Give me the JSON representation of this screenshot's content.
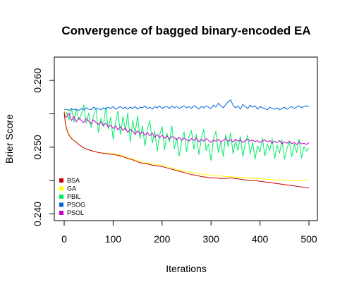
{
  "chart_data": {
    "type": "line",
    "title": "Convergence of bagged binary-encoded EA",
    "xlabel": "Iterations",
    "ylabel": "Brier Score",
    "xlim": [
      0,
      500
    ],
    "ylim": [
      0.239,
      0.2635
    ],
    "x_ticks": [
      0,
      100,
      200,
      300,
      400,
      500
    ],
    "x_tick_labels": [
      "0",
      "100",
      "200",
      "300",
      "400",
      "500"
    ],
    "y_ticks": [
      0.24,
      0.245,
      0.25,
      0.255,
      0.26
    ],
    "y_tick_labels": [
      "0.240",
      "",
      "0.250",
      "",
      "0.260"
    ],
    "grid": false,
    "legend_position": "bottom-left",
    "series": [
      {
        "name": "BSA",
        "color": "#cc0000",
        "x": [
          0,
          2,
          4,
          6,
          8,
          10,
          15,
          20,
          25,
          30,
          40,
          50,
          60,
          70,
          80,
          90,
          100,
          110,
          120,
          130,
          140,
          150,
          160,
          170,
          180,
          190,
          200,
          210,
          220,
          230,
          240,
          250,
          260,
          270,
          280,
          290,
          300,
          310,
          320,
          330,
          340,
          350,
          360,
          370,
          380,
          390,
          400,
          410,
          420,
          430,
          440,
          450,
          460,
          470,
          480,
          490,
          500
        ],
        "values": [
          0.2553,
          0.2538,
          0.253,
          0.2525,
          0.2521,
          0.2518,
          0.2513,
          0.251,
          0.2507,
          0.2504,
          0.2499,
          0.2496,
          0.2494,
          0.2492,
          0.2491,
          0.249,
          0.2489,
          0.2488,
          0.2486,
          0.2483,
          0.2481,
          0.2478,
          0.2476,
          0.2475,
          0.2473,
          0.2472,
          0.2471,
          0.2469,
          0.2467,
          0.2465,
          0.2463,
          0.2461,
          0.2459,
          0.2458,
          0.2456,
          0.2455,
          0.2454,
          0.2454,
          0.2453,
          0.2453,
          0.2454,
          0.2453,
          0.2452,
          0.2451,
          0.245,
          0.245,
          0.2449,
          0.2448,
          0.2447,
          0.2446,
          0.2445,
          0.2444,
          0.2443,
          0.2442,
          0.2441,
          0.244,
          0.2439
        ]
      },
      {
        "name": "GA",
        "color": "#ffff00",
        "x": [
          0,
          2,
          4,
          6,
          8,
          10,
          15,
          20,
          25,
          30,
          40,
          50,
          60,
          70,
          80,
          90,
          100,
          110,
          120,
          130,
          140,
          150,
          160,
          170,
          180,
          190,
          200,
          210,
          220,
          230,
          240,
          250,
          260,
          270,
          280,
          290,
          300,
          310,
          320,
          330,
          340,
          350,
          360,
          370,
          380,
          390,
          400,
          410,
          420,
          430,
          440,
          450,
          460,
          470,
          480,
          490,
          500
        ],
        "values": [
          0.2556,
          0.254,
          0.2531,
          0.2526,
          0.2522,
          0.2519,
          0.2514,
          0.251,
          0.2507,
          0.2504,
          0.2499,
          0.2496,
          0.2494,
          0.2492,
          0.2491,
          0.2491,
          0.249,
          0.2489,
          0.2487,
          0.2484,
          0.2482,
          0.248,
          0.2478,
          0.2476,
          0.2475,
          0.2474,
          0.2473,
          0.2471,
          0.2469,
          0.2467,
          0.2465,
          0.2464,
          0.2462,
          0.2461,
          0.246,
          0.2459,
          0.2458,
          0.2457,
          0.2457,
          0.2456,
          0.2456,
          0.2455,
          0.2455,
          0.2454,
          0.2454,
          0.2453,
          0.2453,
          0.2452,
          0.2452,
          0.2451,
          0.2451,
          0.2451,
          0.245,
          0.245,
          0.245,
          0.245,
          0.245
        ]
      },
      {
        "name": "PBIL",
        "color": "#00ee66",
        "x": [
          0,
          5,
          10,
          15,
          20,
          25,
          30,
          35,
          40,
          45,
          50,
          55,
          60,
          65,
          70,
          75,
          80,
          85,
          90,
          95,
          100,
          105,
          110,
          115,
          120,
          125,
          130,
          135,
          140,
          145,
          150,
          155,
          160,
          165,
          170,
          175,
          180,
          185,
          190,
          195,
          200,
          205,
          210,
          215,
          220,
          225,
          230,
          235,
          240,
          245,
          250,
          255,
          260,
          265,
          270,
          275,
          280,
          285,
          290,
          295,
          300,
          305,
          310,
          315,
          320,
          325,
          330,
          335,
          340,
          345,
          350,
          355,
          360,
          365,
          370,
          375,
          380,
          385,
          390,
          395,
          400,
          405,
          410,
          415,
          420,
          425,
          430,
          435,
          440,
          445,
          450,
          455,
          460,
          465,
          470,
          475,
          480,
          485,
          490,
          495,
          500
        ],
        "values": [
          0.2545,
          0.2552,
          0.2541,
          0.2558,
          0.2538,
          0.2557,
          0.2541,
          0.2549,
          0.2563,
          0.2536,
          0.2551,
          0.253,
          0.2547,
          0.2559,
          0.2522,
          0.2543,
          0.2531,
          0.256,
          0.2527,
          0.2545,
          0.2512,
          0.2538,
          0.2554,
          0.2519,
          0.2546,
          0.2525,
          0.2551,
          0.2508,
          0.254,
          0.2521,
          0.2547,
          0.2513,
          0.2532,
          0.2502,
          0.2527,
          0.254,
          0.2506,
          0.2524,
          0.2494,
          0.2518,
          0.2531,
          0.2496,
          0.2521,
          0.2508,
          0.2532,
          0.2498,
          0.2514,
          0.2487,
          0.2509,
          0.2523,
          0.2493,
          0.2516,
          0.2525,
          0.2497,
          0.2519,
          0.2489,
          0.2511,
          0.2527,
          0.2495,
          0.2505,
          0.248,
          0.2512,
          0.2524,
          0.2492,
          0.2508,
          0.2486,
          0.2519,
          0.2501,
          0.2522,
          0.249,
          0.251,
          0.2495,
          0.2516,
          0.2486,
          0.2506,
          0.2518,
          0.249,
          0.2508,
          0.2482,
          0.2502,
          0.2493,
          0.2514,
          0.2487,
          0.2505,
          0.2495,
          0.2513,
          0.2483,
          0.2503,
          0.2491,
          0.2511,
          0.2482,
          0.2498,
          0.2508,
          0.2486,
          0.2505,
          0.2492,
          0.2512,
          0.2484,
          0.2501,
          0.2494,
          0.2499
        ]
      },
      {
        "name": "PSOG",
        "color": "#0066dd",
        "x": [
          0,
          5,
          10,
          15,
          20,
          25,
          30,
          35,
          40,
          45,
          50,
          55,
          60,
          65,
          70,
          75,
          80,
          85,
          90,
          95,
          100,
          105,
          110,
          115,
          120,
          125,
          130,
          135,
          140,
          145,
          150,
          155,
          160,
          165,
          170,
          175,
          180,
          185,
          190,
          195,
          200,
          205,
          210,
          215,
          220,
          225,
          230,
          235,
          240,
          245,
          250,
          255,
          260,
          265,
          270,
          275,
          280,
          285,
          290,
          295,
          300,
          305,
          310,
          315,
          320,
          325,
          330,
          335,
          340,
          345,
          350,
          355,
          360,
          365,
          370,
          375,
          380,
          385,
          390,
          395,
          400,
          405,
          410,
          415,
          420,
          425,
          430,
          435,
          440,
          445,
          450,
          455,
          460,
          465,
          470,
          475,
          480,
          485,
          490,
          495,
          500
        ],
        "values": [
          0.2556,
          0.2557,
          0.2555,
          0.2558,
          0.2556,
          0.2557,
          0.2555,
          0.2558,
          0.2556,
          0.2559,
          0.2557,
          0.2556,
          0.256,
          0.2557,
          0.2558,
          0.2556,
          0.2559,
          0.2557,
          0.256,
          0.2558,
          0.2561,
          0.2557,
          0.2559,
          0.2561,
          0.2558,
          0.256,
          0.2557,
          0.256,
          0.2558,
          0.2561,
          0.2557,
          0.256,
          0.2559,
          0.2562,
          0.2558,
          0.256,
          0.2557,
          0.2561,
          0.2559,
          0.2562,
          0.2558,
          0.256,
          0.2561,
          0.2558,
          0.2562,
          0.2559,
          0.2561,
          0.2558,
          0.256,
          0.2562,
          0.2559,
          0.2561,
          0.2558,
          0.2562,
          0.256,
          0.2557,
          0.2561,
          0.2559,
          0.2562,
          0.256,
          0.2558,
          0.2563,
          0.256,
          0.2566,
          0.2562,
          0.2559,
          0.2564,
          0.2568,
          0.2571,
          0.2563,
          0.2559,
          0.2562,
          0.2557,
          0.2564,
          0.2561,
          0.2558,
          0.2563,
          0.256,
          0.2562,
          0.2557,
          0.2561,
          0.2559,
          0.2558,
          0.2556,
          0.256,
          0.2558,
          0.2557,
          0.2559,
          0.2556,
          0.2558,
          0.256,
          0.2557,
          0.2559,
          0.2561,
          0.2558,
          0.256,
          0.2562,
          0.2559,
          0.2561,
          0.2562,
          0.2561
        ]
      },
      {
        "name": "PSOL",
        "color": "#cc00cc",
        "x": [
          0,
          5,
          10,
          15,
          20,
          25,
          30,
          35,
          40,
          45,
          50,
          55,
          60,
          65,
          70,
          75,
          80,
          85,
          90,
          95,
          100,
          105,
          110,
          115,
          120,
          125,
          130,
          135,
          140,
          145,
          150,
          155,
          160,
          165,
          170,
          175,
          180,
          185,
          190,
          195,
          200,
          205,
          210,
          215,
          220,
          225,
          230,
          235,
          240,
          245,
          250,
          255,
          260,
          265,
          270,
          275,
          280,
          285,
          290,
          295,
          300,
          305,
          310,
          315,
          320,
          325,
          330,
          335,
          340,
          345,
          350,
          355,
          360,
          365,
          370,
          375,
          380,
          385,
          390,
          395,
          400,
          405,
          410,
          415,
          420,
          425,
          430,
          435,
          440,
          445,
          450,
          455,
          460,
          465,
          470,
          475,
          480,
          485,
          490,
          495,
          500
        ],
        "values": [
          0.2548,
          0.2545,
          0.2551,
          0.254,
          0.2546,
          0.2538,
          0.2544,
          0.254,
          0.2537,
          0.2543,
          0.2539,
          0.2535,
          0.2541,
          0.2537,
          0.2534,
          0.2538,
          0.2532,
          0.2536,
          0.253,
          0.2533,
          0.2528,
          0.2532,
          0.2526,
          0.2531,
          0.2525,
          0.2529,
          0.2522,
          0.2527,
          0.2524,
          0.2519,
          0.2525,
          0.252,
          0.2523,
          0.2518,
          0.2522,
          0.2517,
          0.2521,
          0.2515,
          0.2519,
          0.2514,
          0.2518,
          0.2513,
          0.2517,
          0.2512,
          0.2516,
          0.2514,
          0.2511,
          0.2515,
          0.251,
          0.2514,
          0.2511,
          0.2509,
          0.2513,
          0.251,
          0.2514,
          0.2508,
          0.2512,
          0.2509,
          0.2513,
          0.251,
          0.2507,
          0.2511,
          0.2509,
          0.2512,
          0.2508,
          0.251,
          0.2513,
          0.2509,
          0.2511,
          0.2508,
          0.2512,
          0.2509,
          0.2511,
          0.2507,
          0.251,
          0.2512,
          0.2509,
          0.2511,
          0.2508,
          0.251,
          0.2507,
          0.2509,
          0.2511,
          0.2508,
          0.251,
          0.2506,
          0.2509,
          0.2507,
          0.251,
          0.2505,
          0.2508,
          0.2506,
          0.2509,
          0.2505,
          0.2507,
          0.2504,
          0.2508,
          0.2505,
          0.2506,
          0.2504,
          0.2507
        ]
      }
    ]
  }
}
